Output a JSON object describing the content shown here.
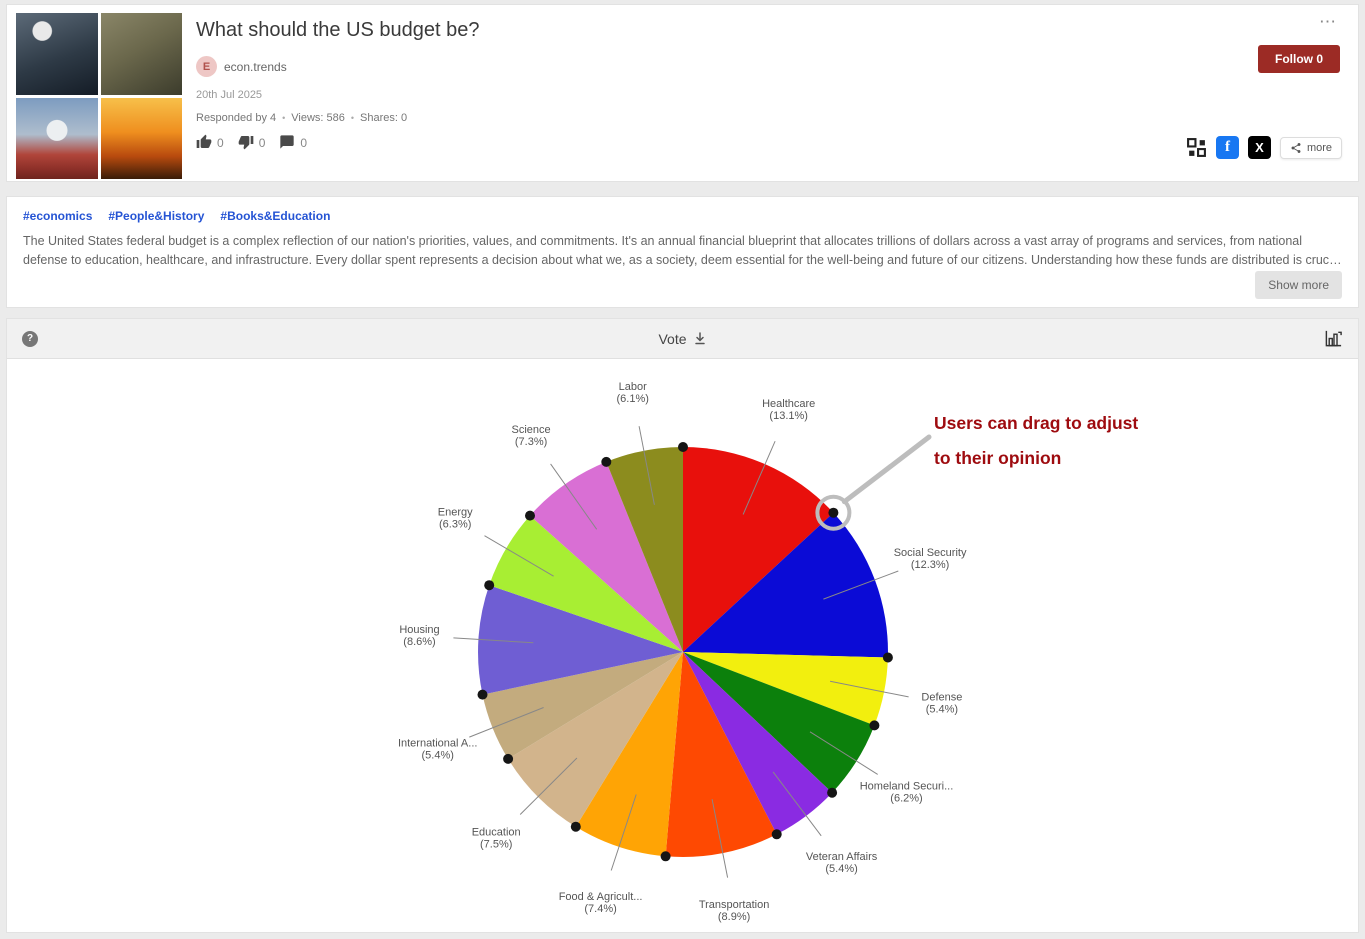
{
  "post": {
    "title": "What should the US budget be?",
    "author_initial": "E",
    "author": "econ.trends",
    "date": "20th Jul 2025",
    "responded": "Responded by 4",
    "views": "Views: 586",
    "shares": "Shares: 0",
    "likes_count": "0",
    "dislikes_count": "0",
    "comments_count": "0",
    "follow_label": "Follow 0",
    "share_more_label": "more"
  },
  "icons": {
    "more_options": "⋯",
    "facebook_glyph": "f",
    "x_glyph": "X",
    "help_glyph": "?",
    "separator": "•"
  },
  "tags": [
    "#economics",
    "#People&History",
    "#Books&Education"
  ],
  "description": "The United States federal budget is a complex reflection of our nation's priorities, values, and commitments. It's an annual financial blueprint that allocates trillions of dollars across a vast array of programs and services, from national defense to education, healthcare, and infrastructure. Every dollar spent represents a decision about what we, as a society, deem essential for the well-being and future of our citizens. Understanding how these funds are distributed is crucial for informed civic engagement, as it directly impact...",
  "show_more_label": "Show more",
  "vote_header": {
    "title": "Vote"
  },
  "annotation": {
    "line1": "Users can drag to adjust",
    "line2": "to their opinion",
    "color": "#9e0b0f",
    "pointer_color": "#bdbdbd"
  },
  "chart_data": {
    "type": "pie",
    "title": "What should the US budget be?",
    "categories": [
      "Healthcare",
      "Social Security",
      "Defense",
      "Homeland Securi...",
      "Veteran Affairs",
      "Transportation",
      "Food & Agricult...",
      "Education",
      "International A...",
      "Housing",
      "Energy",
      "Science",
      "Labor"
    ],
    "values": [
      13.1,
      12.3,
      5.4,
      6.2,
      5.4,
      8.9,
      7.4,
      7.5,
      5.4,
      8.6,
      6.3,
      7.3,
      6.1
    ],
    "colors": [
      "#e8100c",
      "#0b0bd6",
      "#f2ef0e",
      "#0c800c",
      "#8a2be2",
      "#fe4902",
      "#ffa405",
      "#d2b48c",
      "#c3ab7e",
      "#6f5ed3",
      "#a8ee33",
      "#d96fd4",
      "#8c8c1e"
    ],
    "unit": "%",
    "label_format": "name (value%)",
    "legend_position": "none",
    "start_angle": "top",
    "direction": "clockwise",
    "draggable_handles": true
  }
}
